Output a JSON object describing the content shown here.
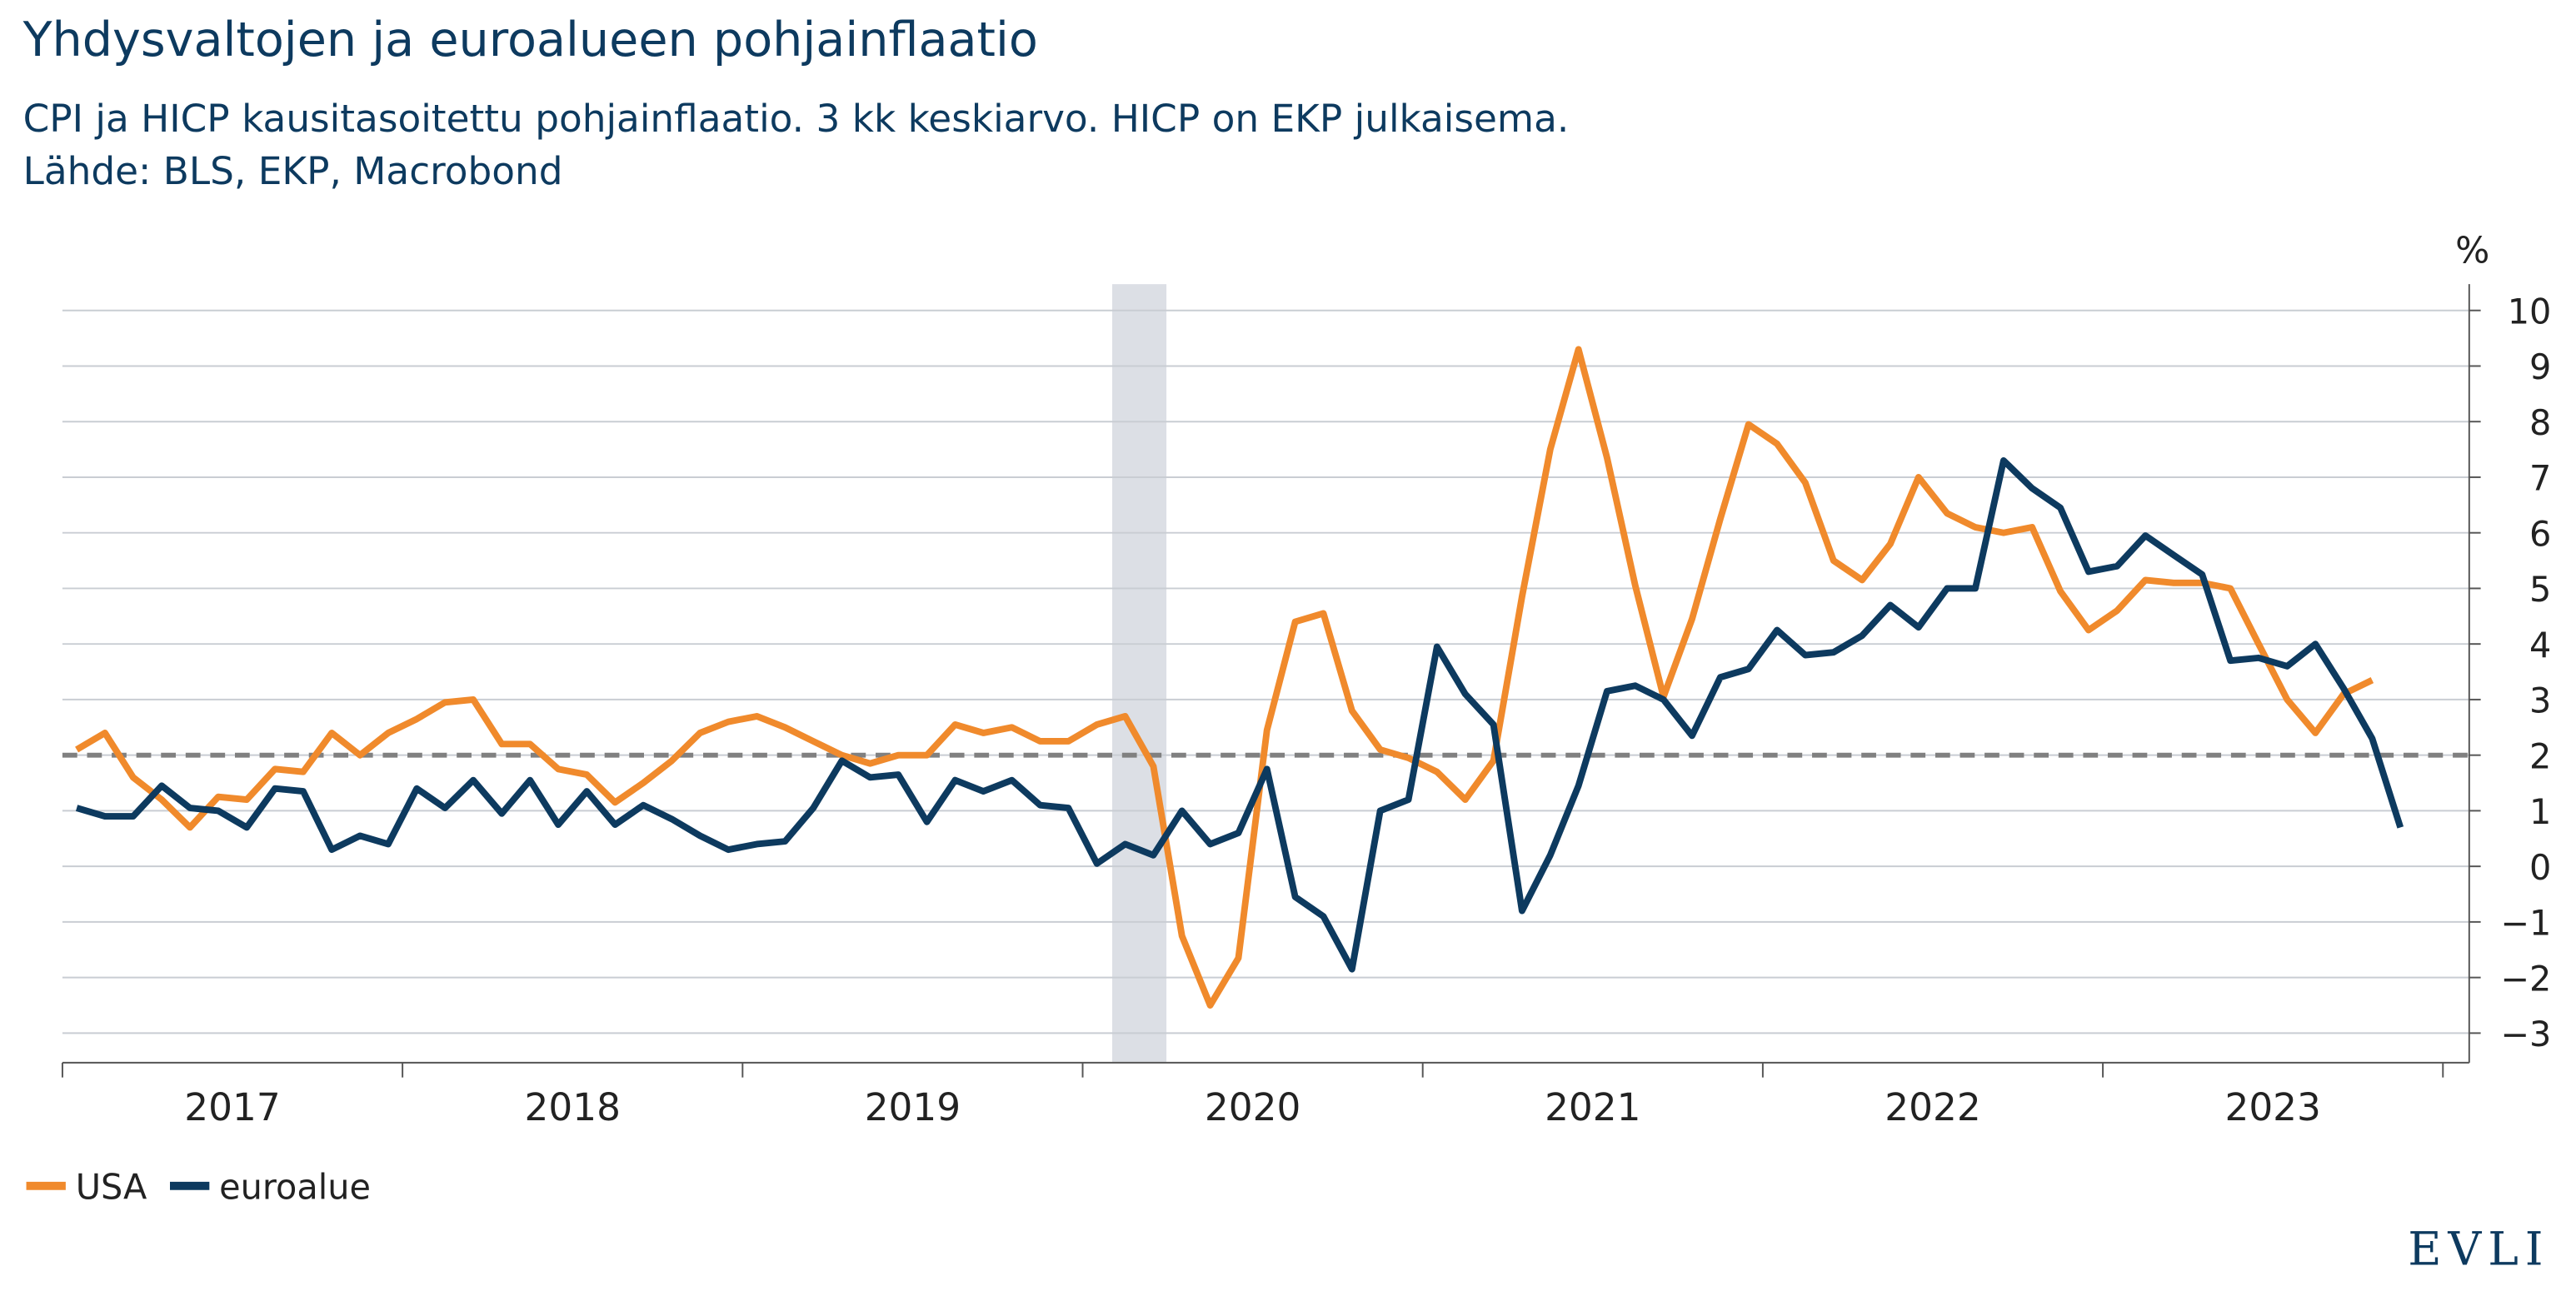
{
  "chart_data": {
    "type": "line",
    "title": "Yhdysvaltojen ja euroalueen pohjainflaatio",
    "subtitle": "CPI ja HICP kausitasoitettu pohjainflaatio. 3 kk keskiarvo. HICP on EKP julkaisema.",
    "source": "Lähde: BLS, EKP, Macrobond",
    "y_unit": "%",
    "logo": "EVLI",
    "x": [
      2017.042,
      2017.125,
      2017.208,
      2017.292,
      2017.375,
      2017.458,
      2017.542,
      2017.625,
      2017.708,
      2017.792,
      2017.875,
      2017.958,
      2018.042,
      2018.125,
      2018.208,
      2018.292,
      2018.375,
      2018.458,
      2018.542,
      2018.625,
      2018.708,
      2018.792,
      2018.875,
      2018.958,
      2019.042,
      2019.125,
      2019.208,
      2019.292,
      2019.375,
      2019.458,
      2019.542,
      2019.625,
      2019.708,
      2019.792,
      2019.875,
      2019.958,
      2020.042,
      2020.125,
      2020.208,
      2020.292,
      2020.375,
      2020.458,
      2020.542,
      2020.625,
      2020.708,
      2020.792,
      2020.875,
      2020.958,
      2021.042,
      2021.125,
      2021.208,
      2021.292,
      2021.375,
      2021.458,
      2021.542,
      2021.625,
      2021.708,
      2021.792,
      2021.875,
      2021.958,
      2022.042,
      2022.125,
      2022.208,
      2022.292,
      2022.375,
      2022.458,
      2022.542,
      2022.625,
      2022.708,
      2022.792,
      2022.875,
      2022.958,
      2023.042,
      2023.125,
      2023.208,
      2023.292,
      2023.375,
      2023.458,
      2023.542,
      2023.625,
      2023.708,
      2023.792,
      2023.875
    ],
    "series": [
      {
        "name": "USA",
        "color": "#f08a2c",
        "values": [
          2.1,
          2.4,
          1.6,
          1.2,
          0.7,
          1.25,
          1.2,
          1.75,
          1.7,
          2.4,
          2.0,
          2.4,
          2.65,
          2.95,
          3.0,
          2.2,
          2.2,
          1.75,
          1.65,
          1.15,
          1.5,
          1.9,
          2.4,
          2.6,
          2.7,
          2.5,
          2.25,
          2.0,
          1.85,
          2.0,
          2.0,
          2.55,
          2.4,
          2.5,
          2.25,
          2.25,
          2.55,
          2.7,
          1.8,
          -1.25,
          -2.5,
          -1.65,
          2.45,
          4.4,
          4.55,
          2.8,
          2.1,
          1.95,
          1.7,
          1.2,
          1.9,
          4.85,
          7.5,
          9.3,
          7.35,
          5.05,
          3.05,
          4.45,
          6.25,
          7.95,
          7.6,
          6.9,
          5.5,
          5.15,
          5.8,
          7.0,
          6.35,
          6.1,
          6.0,
          6.1,
          4.95,
          4.25,
          4.6,
          5.15,
          5.1,
          5.1,
          5.0,
          4.0,
          3.0,
          2.4,
          3.1,
          3.35,
          null
        ]
      },
      {
        "name": "euroalue",
        "color": "#0d3a5f",
        "values": [
          1.05,
          0.9,
          0.9,
          1.45,
          1.05,
          1.0,
          0.7,
          1.4,
          1.35,
          0.3,
          0.55,
          0.4,
          1.4,
          1.05,
          1.55,
          0.95,
          1.55,
          0.75,
          1.35,
          0.75,
          1.1,
          0.85,
          0.55,
          0.3,
          0.4,
          0.45,
          1.05,
          1.9,
          1.6,
          1.65,
          0.8,
          1.55,
          1.35,
          1.55,
          1.1,
          1.05,
          0.05,
          0.4,
          0.2,
          1.0,
          0.4,
          0.6,
          1.75,
          -0.55,
          -0.9,
          -1.85,
          1.0,
          1.2,
          3.95,
          3.1,
          2.55,
          -0.8,
          0.2,
          1.45,
          3.15,
          3.25,
          3.0,
          2.35,
          3.4,
          3.55,
          4.25,
          3.8,
          3.85,
          4.15,
          4.7,
          4.3,
          5.0,
          5.0,
          7.3,
          6.8,
          6.45,
          5.3,
          5.4,
          5.95,
          5.6,
          5.25,
          3.7,
          3.75,
          3.6,
          4.0,
          3.2,
          2.3,
          0.7
        ]
      }
    ],
    "xlim": [
      2017,
      2024
    ],
    "xticks": [
      2017,
      2018,
      2019,
      2020,
      2021,
      2022,
      2023,
      2024
    ],
    "xlabels": [
      2017,
      2018,
      2019,
      2020,
      2021,
      2022,
      2023
    ],
    "ylim": [
      -3,
      10
    ],
    "yticks": [
      {
        "value": -3,
        "label": "−3"
      },
      {
        "value": -2,
        "label": "−2"
      },
      {
        "value": -1,
        "label": "−1"
      },
      0,
      1,
      2,
      3,
      4,
      5,
      6,
      7,
      8,
      9,
      10
    ],
    "reference_line": 2,
    "grid": true,
    "legend": "bottom-left"
  }
}
